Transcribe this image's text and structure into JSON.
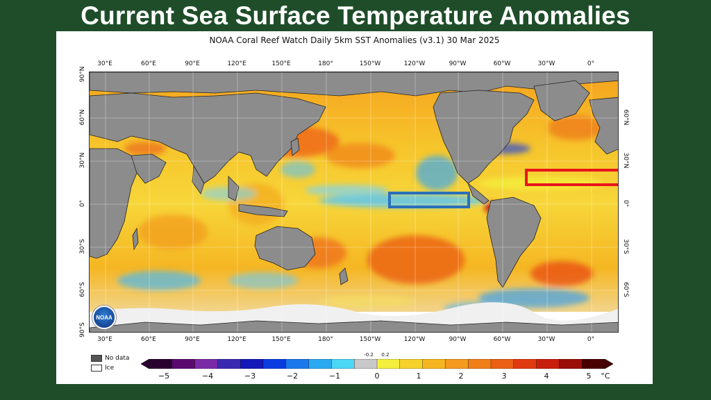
{
  "slide": {
    "title": "Current Sea Surface Temperature Anomalies"
  },
  "map": {
    "title": "NOAA Coral Reef Watch Daily 5km SST Anomalies  (v3.1)   30 Mar 2025",
    "lon_ticks": [
      "30°E",
      "60°E",
      "90°E",
      "120°E",
      "150°E",
      "180°",
      "150°W",
      "120°W",
      "90°W",
      "60°W",
      "30°W",
      "0°"
    ],
    "lat_ticks_left": [
      "90°N",
      "60°N",
      "30°N",
      "0°",
      "30°S",
      "60°S",
      "90°S"
    ],
    "lat_ticks_right": [
      "60°N",
      "30°N",
      "0°",
      "30°S",
      "60°S"
    ],
    "highlight_boxes": [
      {
        "name": "central-pacific-box",
        "color": "#2a6fb8"
      },
      {
        "name": "tropical-atlantic-box",
        "color": "#e8151b"
      }
    ],
    "logo_text": "NOAA"
  },
  "legend": {
    "no_data_label": "No data",
    "ice_label": "Ice",
    "no_data_color": "#555555",
    "ice_color": "#ffffff",
    "land_color": "#8c8c8c"
  },
  "colorbar": {
    "unit": "°C",
    "labels": [
      "−5",
      "−4",
      "−3",
      "−2",
      "−1",
      "0",
      "1",
      "2",
      "3",
      "4",
      "5"
    ],
    "small_labels": [
      "-0.2",
      "0.2"
    ],
    "colors": [
      "#2a0030",
      "#5a0a6e",
      "#7a2aa6",
      "#3a2ab0",
      "#1418b8",
      "#0a3ce0",
      "#1a78ea",
      "#2aa8f0",
      "#4cd6f6",
      "#c8c8c8",
      "#f4ef3c",
      "#f5d22a",
      "#f5b520",
      "#f49a1e",
      "#f07e18",
      "#ea6014",
      "#e03a10",
      "#c81e0c",
      "#9a0e08",
      "#4a0000"
    ]
  }
}
